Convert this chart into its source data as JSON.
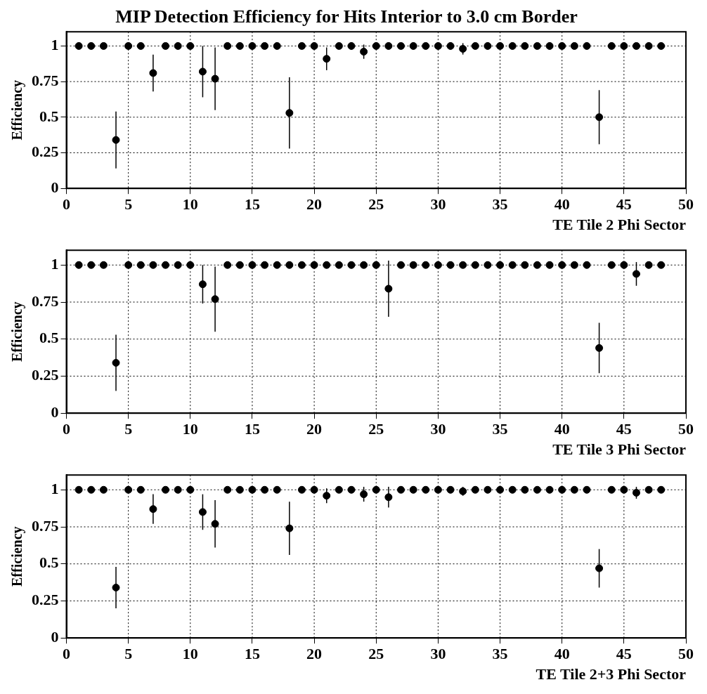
{
  "chart_data": [
    {
      "type": "scatter",
      "title": "MIP Detection Efficiency for Hits Interior to 3.0 cm Border",
      "xlabel": "TE Tile 2 Phi Sector",
      "ylabel": "Efficiency",
      "xlim": [
        0,
        50
      ],
      "ylim": [
        0,
        1.1
      ],
      "xticks": [
        0,
        5,
        10,
        15,
        20,
        25,
        30,
        35,
        40,
        45,
        50
      ],
      "yticks": [
        0,
        0.25,
        0.5,
        0.75,
        1
      ],
      "grid": true,
      "marker": "circle",
      "legend": false,
      "x": [
        1,
        2,
        3,
        4,
        5,
        6,
        7,
        8,
        9,
        10,
        11,
        12,
        13,
        14,
        15,
        16,
        17,
        18,
        19,
        20,
        21,
        22,
        23,
        24,
        25,
        26,
        27,
        28,
        29,
        30,
        31,
        32,
        33,
        34,
        35,
        36,
        37,
        38,
        39,
        40,
        41,
        42,
        43,
        44,
        45,
        46,
        47,
        48
      ],
      "series": [
        {
          "color": "#000000",
          "values": [
            1,
            1,
            1,
            0.34,
            1,
            1,
            0.81,
            1,
            1,
            1,
            0.82,
            0.77,
            1,
            1,
            1,
            1,
            1,
            0.53,
            1,
            1,
            0.91,
            1,
            1,
            0.96,
            1,
            1,
            1,
            1,
            1,
            1,
            1,
            0.98,
            1,
            1,
            1,
            1,
            1,
            1,
            1,
            1,
            1,
            1,
            0.5,
            1,
            1,
            1,
            1,
            1
          ],
          "errors": [
            null,
            null,
            null,
            0.2,
            null,
            null,
            0.13,
            null,
            null,
            null,
            0.18,
            0.22,
            null,
            null,
            null,
            null,
            null,
            0.25,
            null,
            null,
            0.08,
            null,
            null,
            0.05,
            null,
            null,
            null,
            null,
            null,
            null,
            null,
            0.04,
            null,
            null,
            null,
            null,
            null,
            null,
            null,
            null,
            null,
            null,
            0.19,
            null,
            null,
            null,
            null,
            null
          ]
        }
      ]
    },
    {
      "type": "scatter",
      "xlabel": "TE Tile 3 Phi Sector",
      "ylabel": "Efficiency",
      "xlim": [
        0,
        50
      ],
      "ylim": [
        0,
        1.1
      ],
      "xticks": [
        0,
        5,
        10,
        15,
        20,
        25,
        30,
        35,
        40,
        45,
        50
      ],
      "yticks": [
        0,
        0.25,
        0.5,
        0.75,
        1
      ],
      "grid": true,
      "marker": "circle",
      "legend": false,
      "x": [
        1,
        2,
        3,
        4,
        5,
        6,
        7,
        8,
        9,
        10,
        11,
        12,
        13,
        14,
        15,
        16,
        17,
        18,
        19,
        20,
        21,
        22,
        23,
        24,
        25,
        26,
        27,
        28,
        29,
        30,
        31,
        32,
        33,
        34,
        35,
        36,
        37,
        38,
        39,
        40,
        41,
        42,
        43,
        44,
        45,
        46,
        47,
        48
      ],
      "series": [
        {
          "color": "#000000",
          "values": [
            1,
            1,
            1,
            0.34,
            1,
            1,
            1,
            1,
            1,
            1,
            0.87,
            0.77,
            1,
            1,
            1,
            1,
            1,
            1,
            1,
            1,
            1,
            1,
            1,
            1,
            1,
            0.84,
            1,
            1,
            1,
            1,
            1,
            1,
            1,
            1,
            1,
            1,
            1,
            1,
            1,
            1,
            1,
            1,
            0.44,
            1,
            1,
            0.94,
            1,
            1
          ],
          "errors": [
            null,
            null,
            null,
            0.19,
            null,
            null,
            null,
            null,
            null,
            null,
            0.13,
            0.22,
            null,
            null,
            null,
            null,
            null,
            null,
            null,
            null,
            null,
            null,
            null,
            null,
            null,
            0.19,
            null,
            null,
            null,
            null,
            null,
            null,
            null,
            null,
            null,
            null,
            null,
            null,
            null,
            null,
            null,
            null,
            0.17,
            null,
            null,
            0.08,
            null,
            null
          ]
        }
      ]
    },
    {
      "type": "scatter",
      "xlabel": "TE Tile 2+3 Phi Sector",
      "ylabel": "Efficiency",
      "xlim": [
        0,
        50
      ],
      "ylim": [
        0,
        1.1
      ],
      "xticks": [
        0,
        5,
        10,
        15,
        20,
        25,
        30,
        35,
        40,
        45,
        50
      ],
      "yticks": [
        0,
        0.25,
        0.5,
        0.75,
        1
      ],
      "grid": true,
      "marker": "circle",
      "legend": false,
      "x": [
        1,
        2,
        3,
        4,
        5,
        6,
        7,
        8,
        9,
        10,
        11,
        12,
        13,
        14,
        15,
        16,
        17,
        18,
        19,
        20,
        21,
        22,
        23,
        24,
        25,
        26,
        27,
        28,
        29,
        30,
        31,
        32,
        33,
        34,
        35,
        36,
        37,
        38,
        39,
        40,
        41,
        42,
        43,
        44,
        45,
        46,
        47,
        48
      ],
      "series": [
        {
          "color": "#000000",
          "values": [
            1,
            1,
            1,
            0.34,
            1,
            1,
            0.87,
            1,
            1,
            1,
            0.85,
            0.77,
            1,
            1,
            1,
            1,
            1,
            0.74,
            1,
            1,
            0.96,
            1,
            1,
            0.97,
            1,
            0.95,
            1,
            1,
            1,
            1,
            1,
            0.99,
            1,
            1,
            1,
            1,
            1,
            1,
            1,
            1,
            1,
            1,
            0.47,
            1,
            1,
            0.98,
            1,
            1
          ],
          "errors": [
            null,
            null,
            null,
            0.14,
            null,
            null,
            0.1,
            null,
            null,
            null,
            0.12,
            0.16,
            null,
            null,
            null,
            null,
            null,
            0.18,
            null,
            null,
            0.05,
            null,
            null,
            0.05,
            null,
            0.07,
            null,
            null,
            null,
            null,
            null,
            0.03,
            null,
            null,
            null,
            null,
            null,
            null,
            null,
            null,
            null,
            null,
            0.13,
            null,
            null,
            0.04,
            null,
            null
          ]
        }
      ]
    }
  ]
}
